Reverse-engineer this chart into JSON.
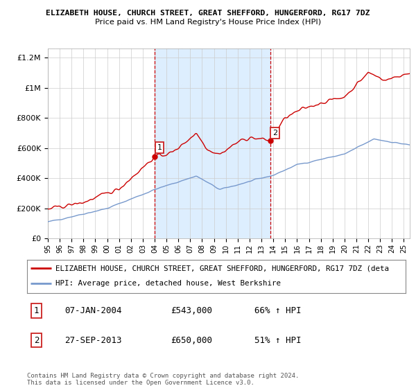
{
  "title1": "ELIZABETH HOUSE, CHURCH STREET, GREAT SHEFFORD, HUNGERFORD, RG17 7DZ",
  "title2": "Price paid vs. HM Land Registry's House Price Index (HPI)",
  "ylabel_ticks": [
    "£0",
    "£200K",
    "£400K",
    "£600K",
    "£800K",
    "£1M",
    "£1.2M"
  ],
  "ytick_values": [
    0,
    200000,
    400000,
    600000,
    800000,
    1000000,
    1200000
  ],
  "ylim": [
    0,
    1260000
  ],
  "xlim_start": 1995.0,
  "xlim_end": 2025.5,
  "marker1_x": 2004.02,
  "marker1_y": 543000,
  "marker2_x": 2013.73,
  "marker2_y": 650000,
  "red_color": "#cc0000",
  "blue_color": "#7799cc",
  "shading_color": "#ddeeff",
  "marker_box_color": "#cc2222",
  "background_color": "#ffffff",
  "grid_color": "#cccccc",
  "legend_label_red": "ELIZABETH HOUSE, CHURCH STREET, GREAT SHEFFORD, HUNGERFORD, RG17 7DZ (deta",
  "legend_label_blue": "HPI: Average price, detached house, West Berkshire",
  "table_row1": [
    "1",
    "07-JAN-2004",
    "£543,000",
    "66% ↑ HPI"
  ],
  "table_row2": [
    "2",
    "27-SEP-2013",
    "£650,000",
    "51% ↑ HPI"
  ],
  "footer1": "Contains HM Land Registry data © Crown copyright and database right 2024.",
  "footer2": "This data is licensed under the Open Government Licence v3.0."
}
